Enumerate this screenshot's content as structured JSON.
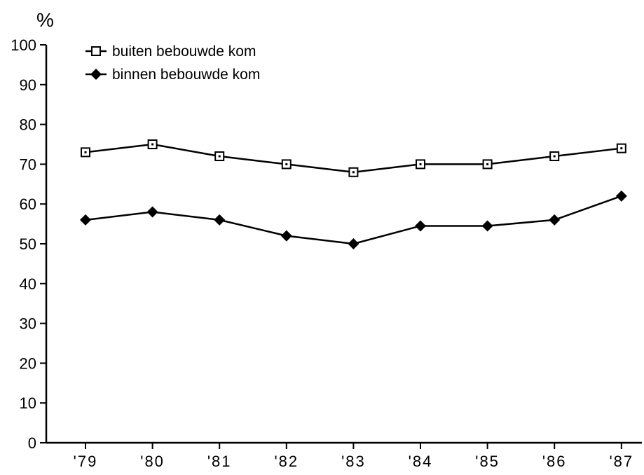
{
  "chart_data": {
    "type": "line",
    "ylabel": "%",
    "xlabel": "",
    "categories": [
      "'79",
      "'80",
      "'81",
      "'82",
      "'83",
      "'84",
      "'85",
      "'86",
      "'87"
    ],
    "ylim": [
      0,
      100
    ],
    "yticks": [
      0,
      10,
      20,
      30,
      40,
      50,
      60,
      70,
      80,
      90,
      100
    ],
    "grid": false,
    "legend_position": "top-left",
    "series": [
      {
        "name": "buiten bebouwde kom",
        "marker": "open-square",
        "values": [
          73,
          75,
          72,
          70,
          68,
          70,
          70,
          72,
          74
        ]
      },
      {
        "name": "binnen bebouwde kom",
        "marker": "filled-diamond",
        "values": [
          56,
          58,
          56,
          52,
          50,
          54.5,
          54.5,
          56,
          62
        ]
      }
    ],
    "colors": {
      "line": "#000000",
      "background": "#ffffff"
    }
  }
}
